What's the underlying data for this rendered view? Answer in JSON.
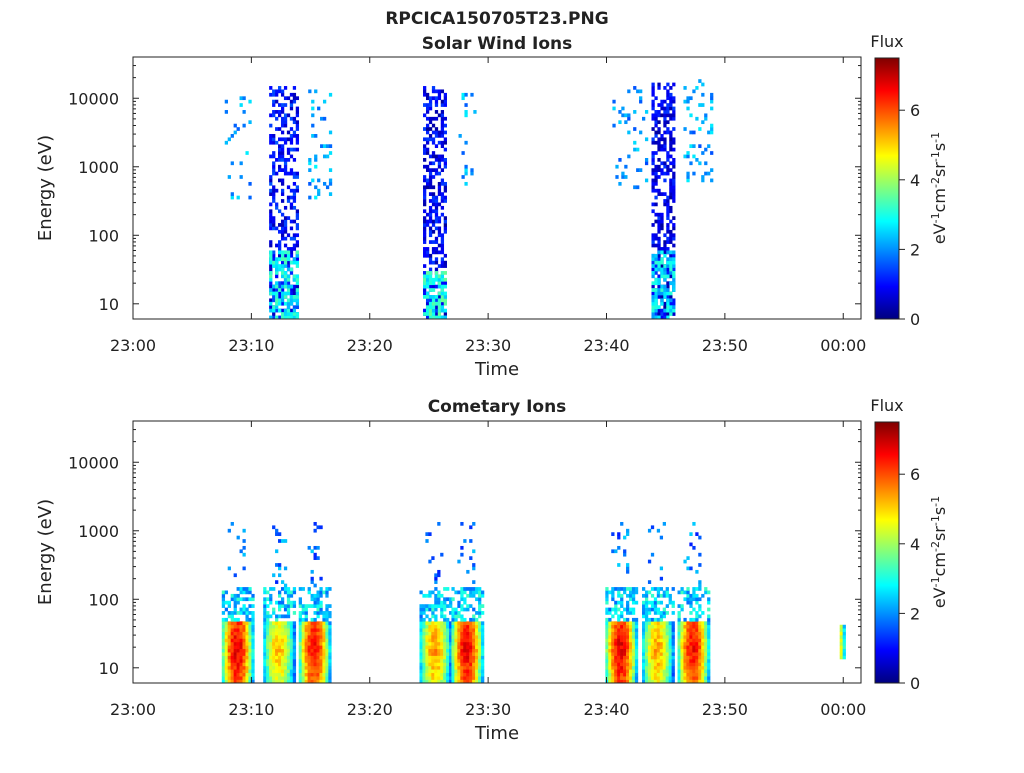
{
  "figure": {
    "title": "RPCICA150705T23.PNG"
  },
  "colors": {
    "colormap": [
      "#00007f",
      "#0000ff",
      "#007fff",
      "#00ffff",
      "#7fff7f",
      "#ffff00",
      "#ff7f00",
      "#ff0000",
      "#7f0000"
    ],
    "axis": "#222222"
  },
  "chart_data": [
    {
      "type": "heatmap",
      "title": "Solar Wind Ions",
      "xlabel": "Time",
      "ylabel": "Energy (eV)",
      "x_ticks": [
        "23:00",
        "23:10",
        "23:20",
        "23:30",
        "23:40",
        "23:50",
        "00:00"
      ],
      "x_range_minutes": [
        0,
        61.5
      ],
      "y_scale": "log",
      "y_ticks": [
        "10",
        "100",
        "1000",
        "10000"
      ],
      "y_range": [
        6,
        40000
      ],
      "colorbar": {
        "title": "Flux",
        "label": "eV-1cm-2sr-1s-1",
        "ticks": [
          "0",
          "2",
          "4",
          "6"
        ],
        "range": [
          0,
          7.5
        ]
      },
      "bursts": [
        {
          "start_min": 7.5,
          "end_min": 10.0,
          "emin": 300,
          "emax": 11000,
          "flux": 2.1,
          "density": 0.1
        },
        {
          "start_min": 11.5,
          "end_min": 13.8,
          "emin": 6,
          "emax": 15000,
          "flux": 1.0,
          "density": 0.45
        },
        {
          "start_min": 11.5,
          "end_min": 13.8,
          "emin": 6,
          "emax": 60,
          "flux": 2.8,
          "density": 0.6
        },
        {
          "start_min": 14.8,
          "end_min": 16.6,
          "emin": 300,
          "emax": 12000,
          "flux": 2.2,
          "density": 0.15
        },
        {
          "start_min": 24.5,
          "end_min": 26.5,
          "emin": 6,
          "emax": 15000,
          "flux": 0.8,
          "density": 0.55
        },
        {
          "start_min": 24.5,
          "end_min": 26.5,
          "emin": 6,
          "emax": 30,
          "flux": 3.0,
          "density": 0.6
        },
        {
          "start_min": 27.5,
          "end_min": 29.0,
          "emin": 500,
          "emax": 11000,
          "flux": 2.2,
          "density": 0.12
        },
        {
          "start_min": 40.5,
          "end_min": 43.5,
          "emin": 400,
          "emax": 15000,
          "flux": 2.0,
          "density": 0.12
        },
        {
          "start_min": 43.8,
          "end_min": 45.6,
          "emin": 6,
          "emax": 16000,
          "flux": 0.8,
          "density": 0.55
        },
        {
          "start_min": 43.8,
          "end_min": 45.6,
          "emin": 6,
          "emax": 60,
          "flux": 2.6,
          "density": 0.6
        },
        {
          "start_min": 46.5,
          "end_min": 48.8,
          "emin": 500,
          "emax": 17000,
          "flux": 2.1,
          "density": 0.14
        }
      ]
    },
    {
      "type": "heatmap",
      "title": "Cometary Ions",
      "xlabel": "Time",
      "ylabel": "Energy (eV)",
      "x_ticks": [
        "23:00",
        "23:10",
        "23:20",
        "23:30",
        "23:40",
        "23:50",
        "00:00"
      ],
      "x_range_minutes": [
        0,
        61.5
      ],
      "y_scale": "log",
      "y_ticks": [
        "10",
        "100",
        "1000",
        "10000"
      ],
      "y_range": [
        6,
        40000
      ],
      "colorbar": {
        "title": "Flux",
        "label": "eV-1cm-2sr-1s-1",
        "ticks": [
          "0",
          "2",
          "4",
          "6"
        ],
        "range": [
          0,
          7.5
        ]
      },
      "bursts": [
        {
          "center_min": 8.8,
          "core_flux": 6.8
        },
        {
          "center_min": 12.3,
          "core_flux": 5.2
        },
        {
          "center_min": 15.3,
          "core_flux": 6.6
        },
        {
          "center_min": 25.5,
          "core_flux": 5.5
        },
        {
          "center_min": 28.2,
          "core_flux": 6.7
        },
        {
          "center_min": 41.2,
          "core_flux": 6.8
        },
        {
          "center_min": 44.3,
          "core_flux": 5.4
        },
        {
          "center_min": 47.3,
          "core_flux": 6.6
        },
        {
          "center_min": 59.9,
          "core_flux": 5.0,
          "narrow": true
        }
      ]
    }
  ]
}
